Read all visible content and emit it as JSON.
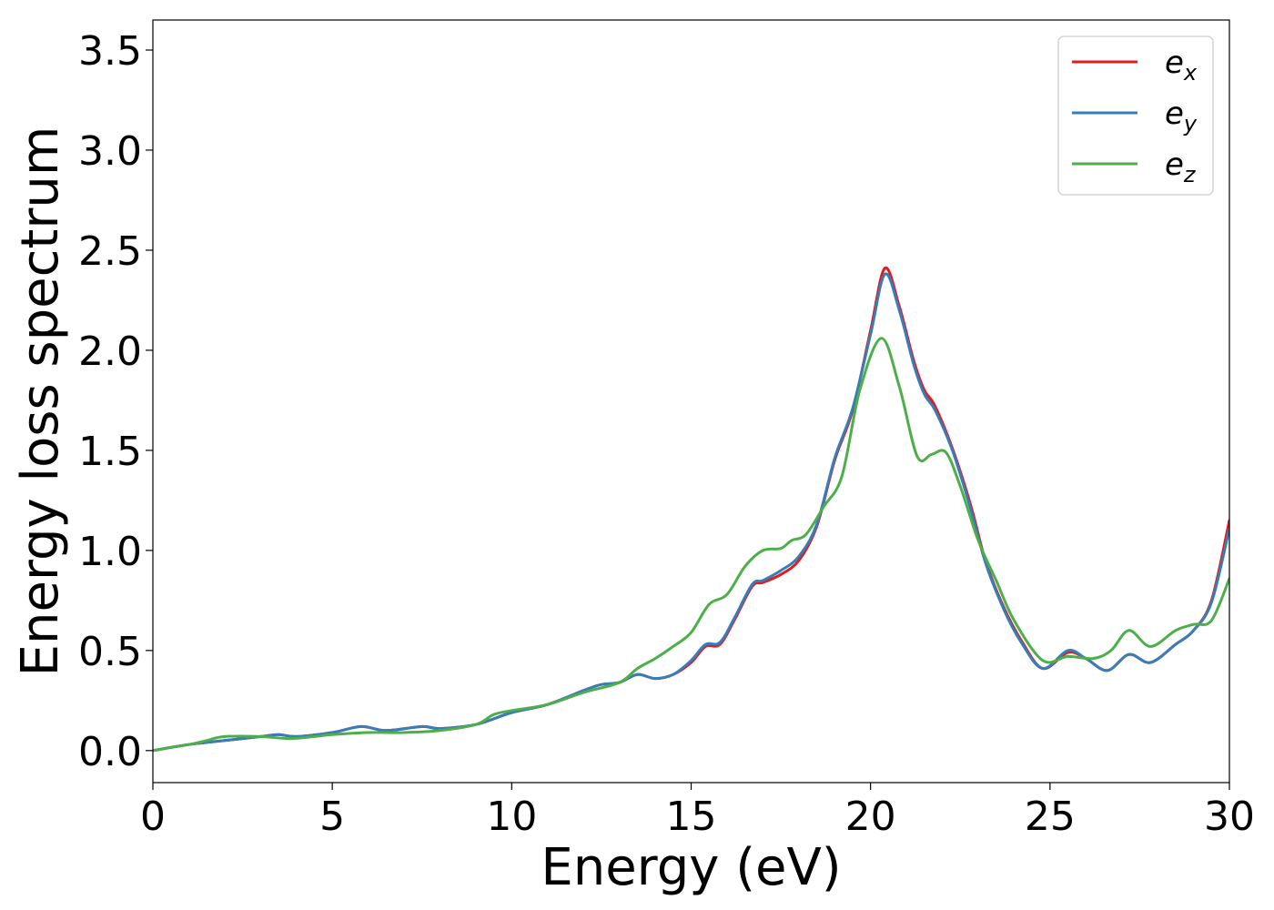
{
  "chart_data": {
    "type": "line",
    "title": "",
    "xlabel": "Energy (eV)",
    "ylabel": "Energy loss spectrum",
    "xlim": [
      0,
      30
    ],
    "ylim": [
      -0.16,
      3.65
    ],
    "xticks": [
      0,
      5,
      10,
      15,
      20,
      25,
      30
    ],
    "xtick_labels": [
      "0",
      "5",
      "10",
      "15",
      "20",
      "25",
      "30"
    ],
    "yticks": [
      0.0,
      0.5,
      1.0,
      1.5,
      2.0,
      2.5,
      3.0,
      3.5
    ],
    "ytick_labels": [
      "0.0",
      "0.5",
      "1.0",
      "1.5",
      "2.0",
      "2.5",
      "3.0",
      "3.5"
    ],
    "grid": false,
    "legend_position": "top-right",
    "series": [
      {
        "name": "e",
        "subscript": "x",
        "color": "#e41a1c",
        "x": [
          0,
          1,
          2,
          3,
          3.5,
          4,
          5,
          5.8,
          6.5,
          7.5,
          8,
          9,
          10,
          11,
          12,
          12.5,
          13,
          13.5,
          14,
          14.5,
          15,
          15.4,
          15.8,
          16.2,
          16.7,
          17,
          17.5,
          18,
          18.5,
          19,
          19.5,
          20,
          20.4,
          20.8,
          21.2,
          21.5,
          21.8,
          22.3,
          22.8,
          23.2,
          23.7,
          24.2,
          24.8,
          25.5,
          26,
          26.6,
          27.2,
          27.8,
          28.5,
          29,
          29.5,
          30
        ],
        "y": [
          0.0,
          0.03,
          0.05,
          0.07,
          0.08,
          0.07,
          0.09,
          0.12,
          0.1,
          0.12,
          0.11,
          0.13,
          0.19,
          0.23,
          0.3,
          0.33,
          0.34,
          0.38,
          0.36,
          0.38,
          0.44,
          0.52,
          0.53,
          0.65,
          0.82,
          0.84,
          0.88,
          0.95,
          1.12,
          1.45,
          1.7,
          2.1,
          2.41,
          2.22,
          1.95,
          1.8,
          1.72,
          1.5,
          1.22,
          0.95,
          0.72,
          0.55,
          0.41,
          0.49,
          0.46,
          0.4,
          0.48,
          0.44,
          0.53,
          0.6,
          0.75,
          1.15
        ]
      },
      {
        "name": "e",
        "subscript": "y",
        "color": "#377eb8",
        "x": [
          0,
          1,
          2,
          3,
          3.5,
          4,
          5,
          5.8,
          6.5,
          7.5,
          8,
          9,
          10,
          11,
          12,
          12.5,
          13,
          13.5,
          14,
          14.5,
          15,
          15.4,
          15.8,
          16.2,
          16.7,
          17,
          17.5,
          18,
          18.5,
          19,
          19.5,
          20,
          20.4,
          20.8,
          21.2,
          21.5,
          21.8,
          22.3,
          22.8,
          23.2,
          23.7,
          24.2,
          24.8,
          25.5,
          26,
          26.6,
          27.2,
          27.8,
          28.5,
          29,
          29.5,
          30
        ],
        "y": [
          0.0,
          0.03,
          0.05,
          0.07,
          0.08,
          0.07,
          0.09,
          0.12,
          0.1,
          0.12,
          0.11,
          0.13,
          0.19,
          0.23,
          0.3,
          0.33,
          0.34,
          0.38,
          0.36,
          0.38,
          0.45,
          0.53,
          0.54,
          0.66,
          0.83,
          0.85,
          0.9,
          0.97,
          1.13,
          1.46,
          1.71,
          2.08,
          2.38,
          2.2,
          1.93,
          1.78,
          1.7,
          1.49,
          1.2,
          0.94,
          0.71,
          0.54,
          0.41,
          0.5,
          0.46,
          0.4,
          0.48,
          0.44,
          0.53,
          0.6,
          0.74,
          1.11
        ]
      },
      {
        "name": "e",
        "subscript": "z",
        "color": "#4daf4a",
        "x": [
          0,
          1,
          1.5,
          2,
          3,
          3.8,
          4.5,
          5,
          6,
          7,
          8,
          9,
          9.5,
          10,
          11,
          12,
          13,
          13.5,
          14,
          14.5,
          15,
          15.5,
          16,
          16.5,
          17,
          17.5,
          17.8,
          18.2,
          18.7,
          19.2,
          19.7,
          20.3,
          20.8,
          21.3,
          21.7,
          22.1,
          22.5,
          23,
          23.5,
          24,
          24.8,
          25.5,
          26.2,
          26.7,
          27.2,
          27.8,
          28.5,
          29,
          29.5,
          30
        ],
        "y": [
          0.0,
          0.03,
          0.05,
          0.07,
          0.07,
          0.06,
          0.07,
          0.08,
          0.09,
          0.09,
          0.1,
          0.13,
          0.18,
          0.2,
          0.23,
          0.29,
          0.34,
          0.41,
          0.46,
          0.52,
          0.59,
          0.73,
          0.78,
          0.92,
          1.0,
          1.01,
          1.05,
          1.08,
          1.22,
          1.37,
          1.8,
          2.06,
          1.82,
          1.47,
          1.48,
          1.49,
          1.32,
          1.05,
          0.85,
          0.65,
          0.45,
          0.47,
          0.46,
          0.5,
          0.6,
          0.52,
          0.6,
          0.63,
          0.65,
          0.86
        ]
      }
    ]
  }
}
